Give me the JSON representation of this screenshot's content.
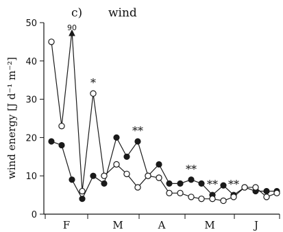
{
  "chart_data": {
    "type": "line",
    "panel_label": "c)",
    "title": "wind",
    "ylabel": "wind energy [J d⁻¹ m⁻²]",
    "ylim": [
      0,
      50
    ],
    "y_ticks": [
      0,
      10,
      20,
      30,
      40,
      50
    ],
    "x_tick_labels": [
      "F",
      "M",
      "A",
      "M",
      "J"
    ],
    "series": [
      {
        "style": "filled-circle",
        "values": [
          19,
          18,
          9,
          4,
          10,
          8,
          20,
          15,
          19,
          10,
          13,
          8,
          8,
          9,
          8,
          5,
          7.5,
          5,
          7,
          6,
          6,
          6
        ]
      },
      {
        "style": "open-circle",
        "values": [
          45,
          23,
          90,
          6,
          31.5,
          10,
          13,
          10.5,
          7,
          10,
          9.5,
          5.5,
          5.5,
          4.5,
          4,
          4,
          3.5,
          4.5,
          7,
          7,
          4.5,
          5.5
        ]
      }
    ],
    "clipped_value_label": "90",
    "annotations": [
      {
        "text": "*",
        "index": 4
      },
      {
        "text": "**",
        "index": 8
      },
      {
        "text": "**",
        "index": 13
      },
      {
        "text": "**",
        "index": 15
      },
      {
        "text": "**",
        "index": 17
      }
    ],
    "colors": {
      "line": "#1a1a1a",
      "filled_marker": "#1a1a1a",
      "open_marker_fill": "#ffffff"
    }
  }
}
